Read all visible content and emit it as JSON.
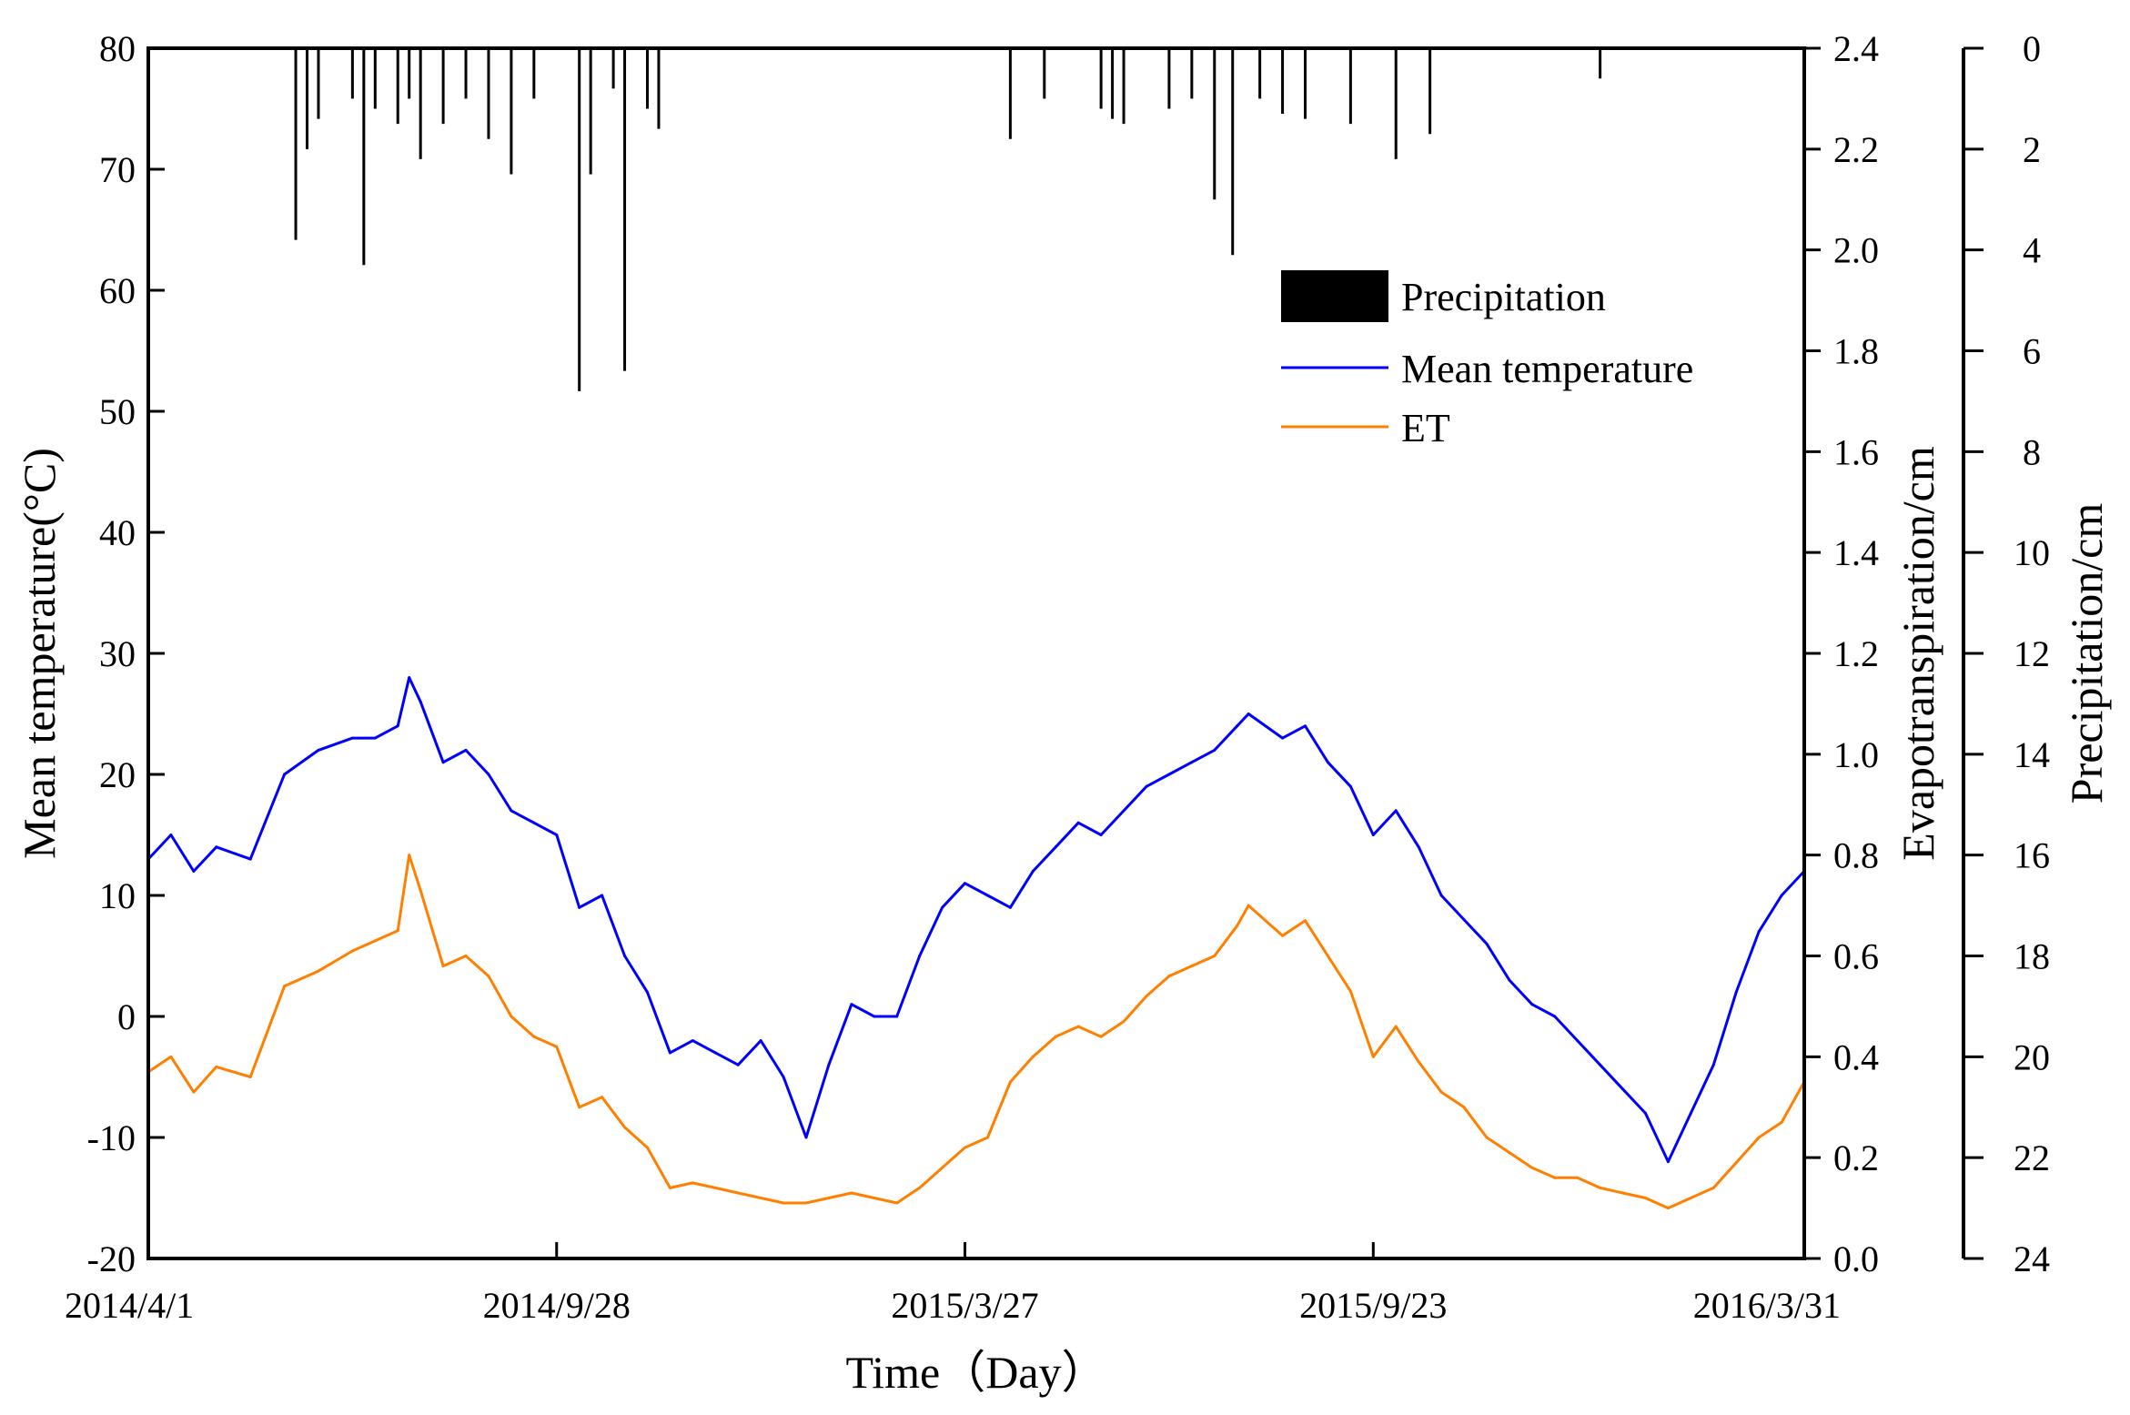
{
  "chart_data": {
    "type": "line",
    "title": "",
    "xlabel": "Time（Day）",
    "x_ticks": [
      "2014/4/1",
      "2014/9/28",
      "2015/3/27",
      "2015/9/23",
      "2016/3/31"
    ],
    "x_tick_days": [
      0,
      180,
      360,
      540,
      730
    ],
    "x_range_days": [
      0,
      730
    ],
    "y_axes": [
      {
        "id": "temp",
        "label": "Mean temperature(°C)",
        "ylim": [
          -20,
          80
        ],
        "ticks": [
          "80",
          "70",
          "60",
          "50",
          "40",
          "30",
          "20",
          "10",
          "0",
          "-10",
          "-20"
        ],
        "tick_values": [
          80,
          70,
          60,
          50,
          40,
          30,
          20,
          10,
          0,
          -10,
          -20
        ]
      },
      {
        "id": "et",
        "label": "Evapotranspiration/cm",
        "ylim": [
          0,
          2.4
        ],
        "ticks": [
          "2.4",
          "2.2",
          "2.0",
          "1.8",
          "1.6",
          "1.4",
          "1.2",
          "1.0",
          "0.8",
          "0.6",
          "0.4",
          "0.2",
          "0.0"
        ],
        "tick_values": [
          2.4,
          2.2,
          2.0,
          1.8,
          1.6,
          1.4,
          1.2,
          1.0,
          0.8,
          0.6,
          0.4,
          0.2,
          0.0
        ]
      },
      {
        "id": "precip",
        "label": "Precipitation/cm",
        "ylim": [
          0,
          24
        ],
        "inverted": true,
        "ticks": [
          "0",
          "2",
          "4",
          "6",
          "8",
          "10",
          "12",
          "14",
          "16",
          "18",
          "20",
          "22",
          "24"
        ],
        "tick_values": [
          0,
          2,
          4,
          6,
          8,
          10,
          12,
          14,
          16,
          18,
          20,
          22,
          24
        ]
      }
    ],
    "legend": {
      "position": "top-right",
      "items": [
        "Precipitation",
        "Mean temperature",
        "ET"
      ]
    },
    "colors": {
      "Precipitation": "#000000",
      "Mean temperature": "#0000ff",
      "ET": "#ff8000"
    },
    "series": [
      {
        "name": "Mean temperature",
        "axis": "temp",
        "color": "#0000ff",
        "x": [
          0,
          10,
          20,
          30,
          45,
          60,
          75,
          90,
          100,
          110,
          115,
          120,
          130,
          140,
          150,
          160,
          170,
          180,
          190,
          200,
          210,
          220,
          230,
          240,
          250,
          260,
          270,
          280,
          290,
          300,
          310,
          320,
          330,
          340,
          350,
          360,
          370,
          380,
          390,
          400,
          410,
          420,
          430,
          440,
          450,
          460,
          470,
          480,
          485,
          500,
          510,
          520,
          530,
          540,
          550,
          560,
          570,
          580,
          590,
          600,
          610,
          620,
          630,
          640,
          650,
          660,
          670,
          680,
          690,
          700,
          710,
          720,
          730
        ],
        "y": [
          13,
          15,
          12,
          14,
          13,
          20,
          22,
          23,
          23,
          24,
          28,
          26,
          21,
          22,
          20,
          17,
          16,
          15,
          9,
          10,
          5,
          2,
          -3,
          -2,
          -3,
          -4,
          -2,
          -5,
          -10,
          -4,
          1,
          0,
          0,
          5,
          9,
          11,
          10,
          9,
          12,
          14,
          16,
          15,
          17,
          19,
          20,
          21,
          22,
          24,
          25,
          23,
          24,
          21,
          19,
          15,
          17,
          14,
          10,
          8,
          6,
          3,
          1,
          0,
          -2,
          -4,
          -6,
          -8,
          -12,
          -8,
          -4,
          2,
          7,
          10,
          12
        ]
      },
      {
        "name": "ET",
        "axis": "et",
        "color": "#ff8000",
        "x": [
          0,
          10,
          20,
          30,
          45,
          60,
          75,
          90,
          100,
          110,
          115,
          120,
          130,
          140,
          150,
          160,
          170,
          180,
          190,
          200,
          210,
          220,
          230,
          240,
          250,
          260,
          270,
          280,
          290,
          300,
          310,
          320,
          330,
          340,
          350,
          360,
          370,
          380,
          390,
          400,
          410,
          420,
          430,
          440,
          450,
          460,
          470,
          480,
          485,
          500,
          510,
          520,
          530,
          540,
          550,
          560,
          570,
          580,
          590,
          600,
          610,
          620,
          630,
          640,
          650,
          660,
          670,
          680,
          690,
          700,
          710,
          720,
          730
        ],
        "y": [
          0.37,
          0.4,
          0.33,
          0.38,
          0.36,
          0.54,
          0.57,
          0.61,
          0.63,
          0.65,
          0.8,
          0.73,
          0.58,
          0.6,
          0.56,
          0.48,
          0.44,
          0.42,
          0.3,
          0.32,
          0.26,
          0.22,
          0.14,
          0.15,
          0.14,
          0.13,
          0.12,
          0.11,
          0.11,
          0.12,
          0.13,
          0.12,
          0.11,
          0.14,
          0.18,
          0.22,
          0.24,
          0.35,
          0.4,
          0.44,
          0.46,
          0.44,
          0.47,
          0.52,
          0.56,
          0.58,
          0.6,
          0.66,
          0.7,
          0.64,
          0.67,
          0.6,
          0.53,
          0.4,
          0.46,
          0.39,
          0.33,
          0.3,
          0.24,
          0.21,
          0.18,
          0.16,
          0.16,
          0.14,
          0.13,
          0.12,
          0.1,
          0.12,
          0.14,
          0.19,
          0.24,
          0.27,
          0.35
        ]
      },
      {
        "name": "Precipitation",
        "axis": "precip",
        "type": "bar",
        "color": "#000000",
        "x": [
          65,
          70,
          75,
          90,
          95,
          100,
          110,
          115,
          120,
          130,
          140,
          150,
          160,
          170,
          190,
          195,
          205,
          210,
          220,
          225,
          380,
          395,
          420,
          425,
          430,
          450,
          460,
          470,
          478,
          490,
          500,
          510,
          530,
          550,
          565,
          640
        ],
        "y": [
          3.8,
          2.0,
          1.4,
          1.0,
          4.3,
          1.2,
          1.5,
          1.0,
          2.2,
          1.5,
          1.0,
          1.8,
          2.5,
          1.0,
          6.8,
          2.5,
          0.8,
          6.4,
          1.2,
          1.6,
          1.8,
          1.0,
          1.2,
          1.4,
          1.5,
          1.2,
          1.0,
          3.0,
          4.1,
          1.0,
          1.3,
          1.4,
          1.5,
          2.2,
          1.7,
          0.6
        ]
      }
    ]
  }
}
